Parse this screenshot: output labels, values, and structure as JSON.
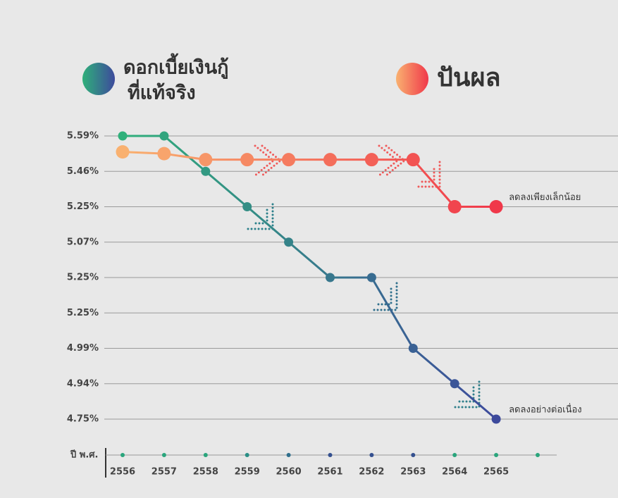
{
  "chart_data": {
    "type": "line",
    "legend": [
      {
        "label": [
          "ดอกเบี้ยเงินกู้",
          "ที่แท้จริง"
        ],
        "colors": [
          "#2fb07a",
          "#3d4a9c"
        ]
      },
      {
        "label": [
          "ปันผล"
        ],
        "colors": [
          "#f9b170",
          "#f0384a"
        ]
      }
    ],
    "x_label": "ปี พ.ศ.",
    "categories": [
      "2556",
      "2557",
      "2558",
      "2559",
      "2560",
      "2561",
      "2562",
      "2563",
      "2564",
      "2565",
      null
    ],
    "axis_dot_colors": [
      "#2aa57c",
      "#2aa57c",
      "#2aa57c",
      "#2a8f86",
      "#2f6f8c",
      "#34508f",
      "#34508f",
      "#34508f",
      "#2aa57c",
      "#2aa57c",
      "#2aa57c"
    ],
    "highlight": {
      "index": 9,
      "color": "#e8202a"
    },
    "ylim": [
      0,
      8
    ],
    "yticks": [
      {
        "value": 8,
        "label": "5.59%"
      },
      {
        "value": 7,
        "label": "5.46%"
      },
      {
        "value": 6,
        "label": "5.25%"
      },
      {
        "value": 5,
        "label": "5.07%"
      },
      {
        "value": 4,
        "label": "5.25%"
      },
      {
        "value": 3,
        "label": "5.25%"
      },
      {
        "value": 2,
        "label": "4.99%"
      },
      {
        "value": 1,
        "label": "4.94%"
      },
      {
        "value": 0,
        "label": "4.75%"
      }
    ],
    "grid": true,
    "series": [
      {
        "name": "ดอกเบี้ยเงินกู้ที่แท้จริง",
        "colors": [
          "#2fb07a",
          "#3d4a9c"
        ],
        "values": [
          8,
          8,
          7,
          6,
          5,
          4,
          4,
          2,
          1,
          0,
          null
        ]
      },
      {
        "name": "ปันผล",
        "colors": [
          "#f9b170",
          "#f0384a"
        ],
        "values": [
          7.55,
          7.5,
          7.33,
          7.33,
          7.33,
          7.33,
          7.33,
          7.33,
          6,
          6,
          null
        ]
      }
    ],
    "annotations": [
      {
        "text": "ลดลงเพียงเล็กน้อย",
        "series": 1,
        "index": 9
      },
      {
        "text": "ลดลงอย่างต่อเนื่อง",
        "series": 0,
        "index": 9
      }
    ]
  }
}
